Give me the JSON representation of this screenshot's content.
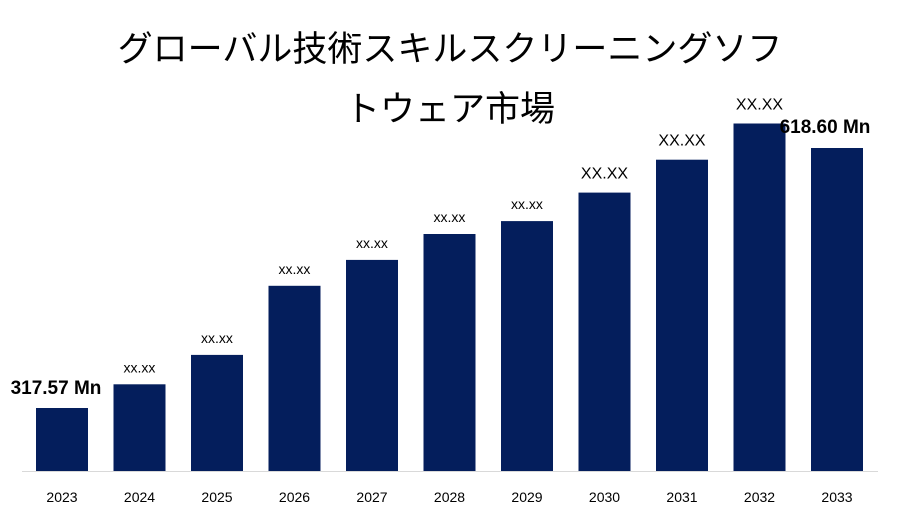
{
  "chart_data": {
    "type": "bar",
    "title_lines": [
      "グローバル技術スキルスクリーニングソフ",
      "トウェア市場"
    ],
    "categories": [
      "2023",
      "2024",
      "2025",
      "2026",
      "2027",
      "2028",
      "2029",
      "2030",
      "2031",
      "2032",
      "2033"
    ],
    "values": [
      317.57,
      345,
      379,
      459,
      489,
      519,
      534,
      567,
      605,
      647,
      618.6
    ],
    "data_labels": [
      "317.57 Mn",
      "xx.xx",
      "xx.xx",
      "xx.xx",
      "xx.xx",
      "xx.xx",
      "xx.xx",
      "XX.XX",
      "XX.XX",
      "XX.XX",
      "618.60 Mn"
    ],
    "bar_color": "#041e5c",
    "grid": false,
    "legend": "none"
  }
}
